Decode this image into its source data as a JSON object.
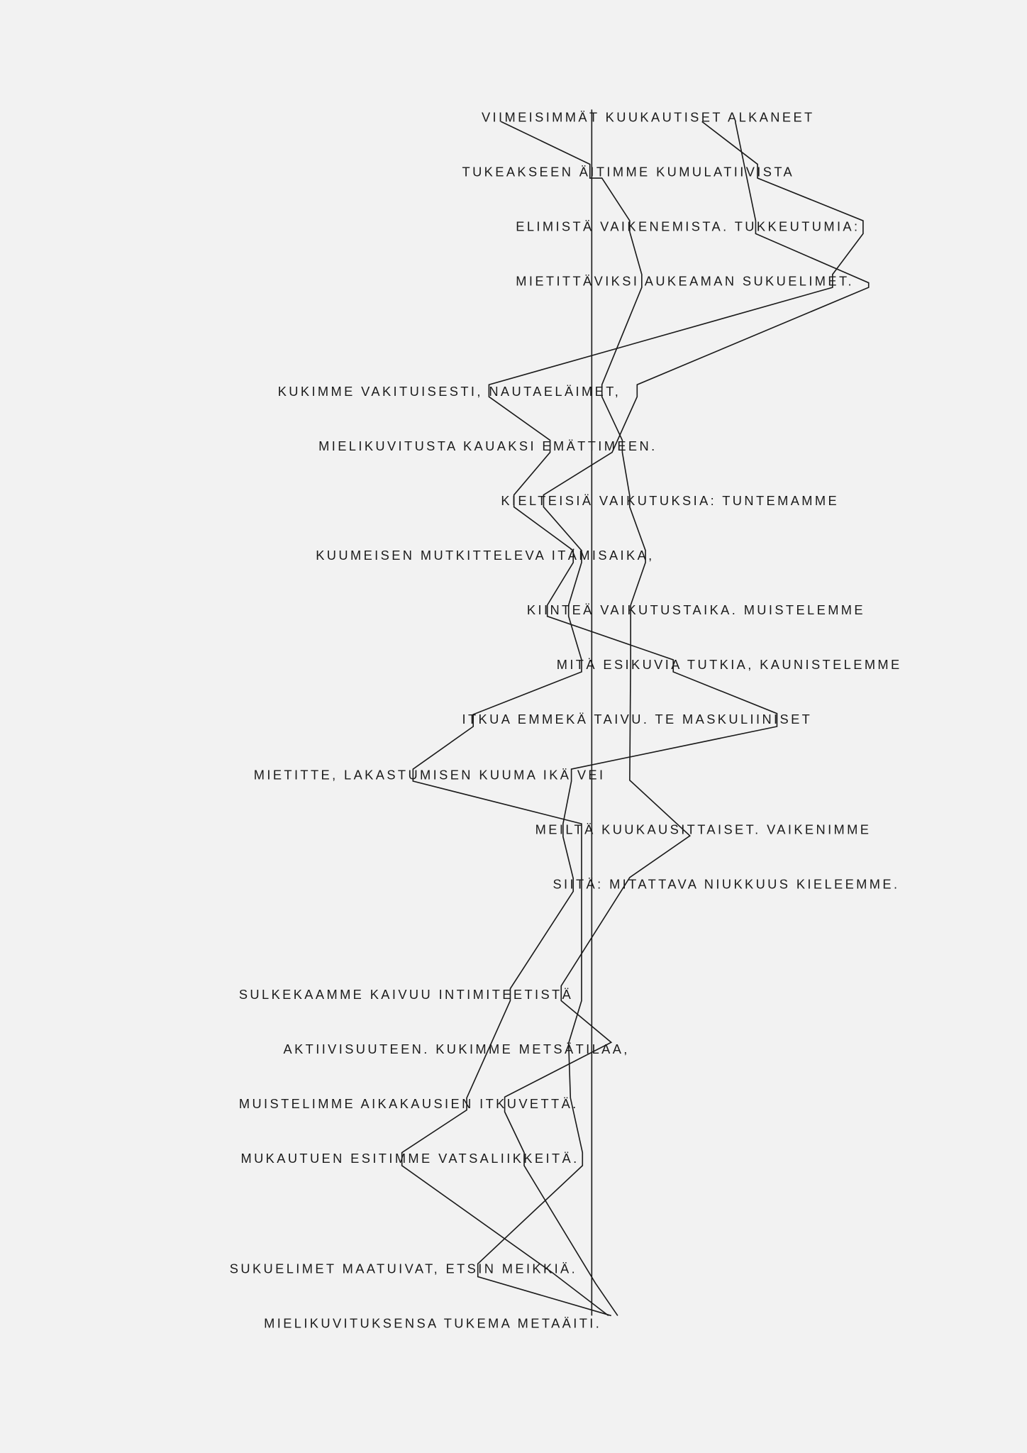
{
  "poem": {
    "lines": [
      "VIIMEISIMMÄT KUUKAUTISET ALKANEET",
      "TUKEAKSEEN ÄITIMME KUMULATIIVISTA",
      "ELIMISTÄ VAIKENEMISTA. TUKKEUTUMIA:",
      "MIETITTÄVIKSI AUKEAMAN SUKUELIMET.",
      "KUKIMME VAKITUISESTI, NAUTAELÄIMET,",
      "MIELIKUVITUSTA KAUAKSI EMÄTTIMEEN.",
      "KIELTEISIÄ VAIKUTUKSIA: TUNTEMAMME",
      "KUUMEISEN MUTKITTELEVA ITÄMISAIKA,",
      "KIINTEÄ VAIKUTUSTAIKA. MUISTELEMME",
      "MITÄ ESIKUVIA TUTKIA, KAUNISTELEMME",
      "ITKUA EMMEKÄ TAIVU. TE MASKULIINISET",
      "MIETITTE, LAKASTUMISEN KUUMA IKÄ VEI",
      "MEILTÄ KUUKAUSITTAISET. VAIKENIMME",
      "SIITÄ: MITATTAVA NIUKKUUS KIELEEMME.",
      "SULKEKAAMME KAIVUU INTIMITEETISTÄ",
      "AKTIIVISUUTEEN. KUKIMME METSÄTILAA,",
      "MUISTELIMME AIKAKAUSIEN ITKUVETTÄ.",
      "MUKAUTUEN ESITIMME VATSALIIKKEITÄ.",
      "SUKUELIMET MAATUIVAT, ETSIN MEIKKIÄ.",
      "MIELIKUVITUKSENSA TUKEMA METAÄITI."
    ]
  },
  "colors": {
    "background": "#f2f2f2",
    "ink": "#1b1b1b"
  }
}
